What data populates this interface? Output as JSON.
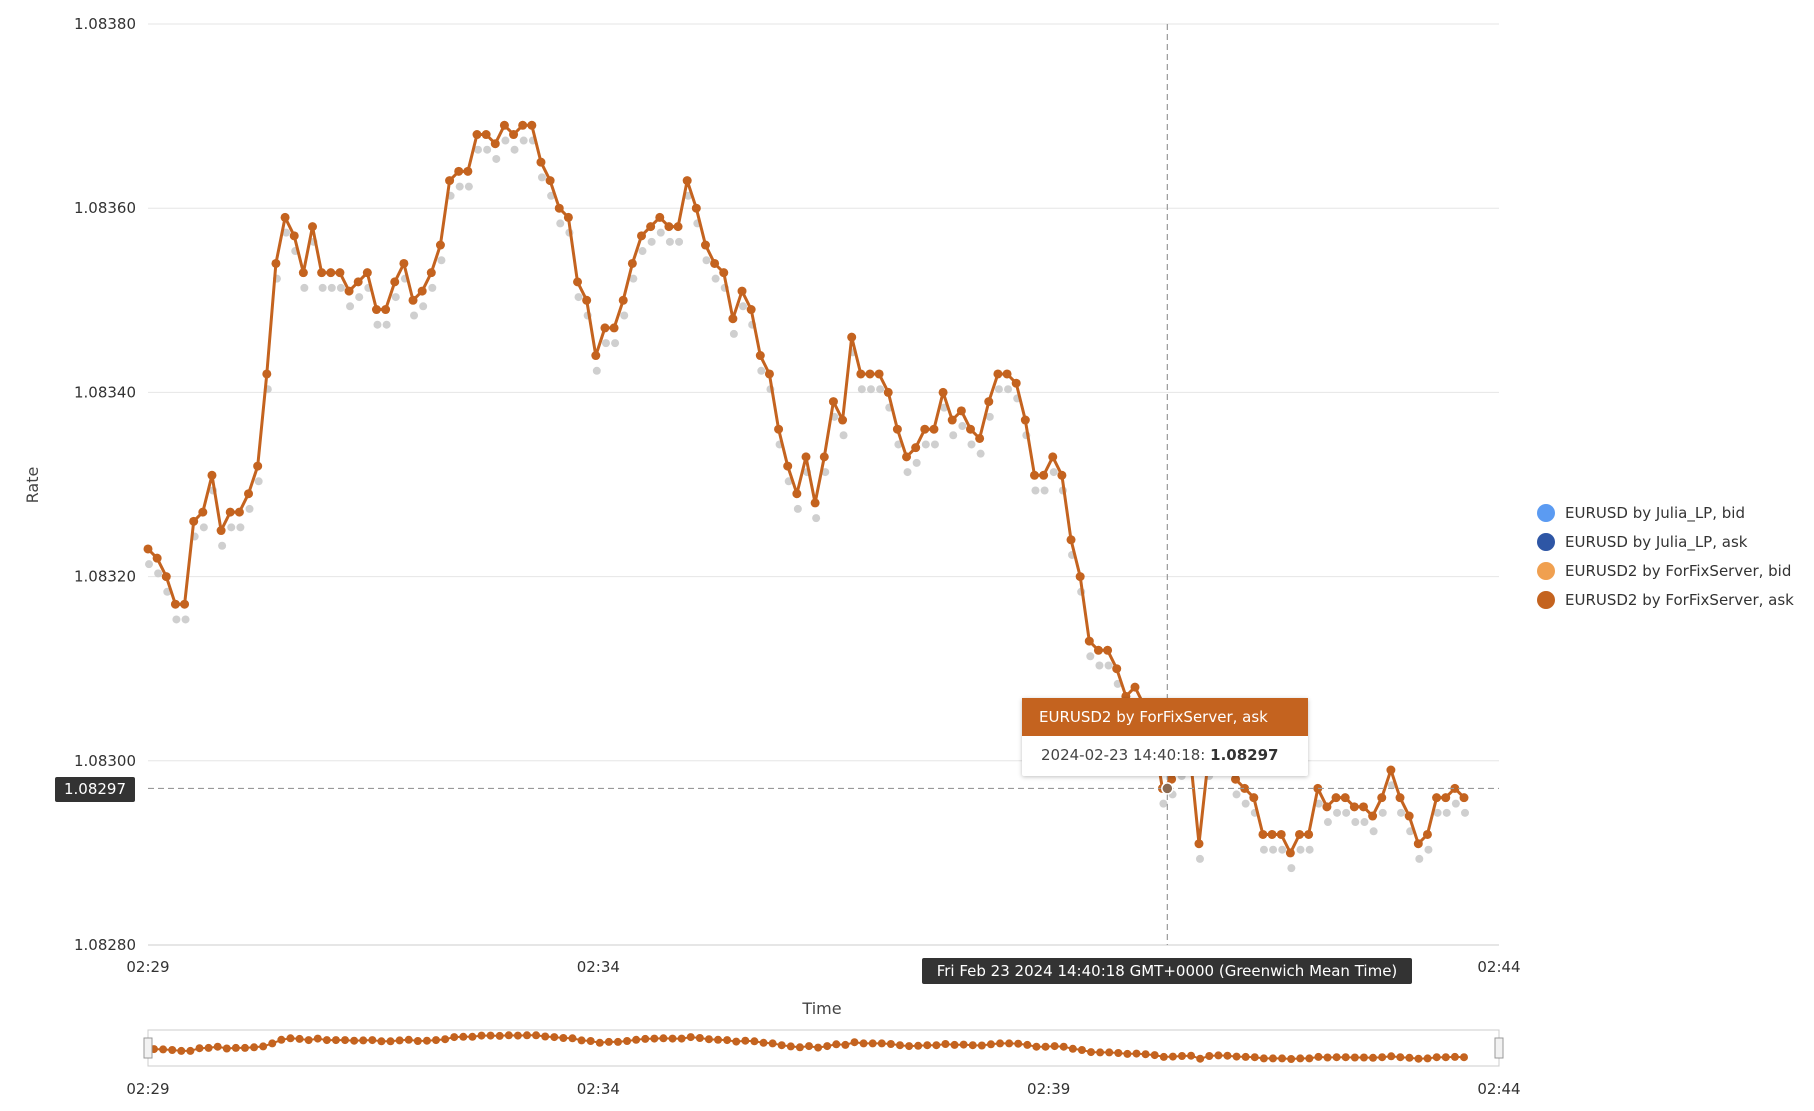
{
  "chart_data": {
    "type": "line",
    "title": "",
    "xlabel": "Time",
    "ylabel": "Rate",
    "ylim": [
      1.0828,
      1.0838
    ],
    "yticks": [
      "1.08280",
      "1.08300",
      "1.08320",
      "1.08340",
      "1.08360",
      "1.08380"
    ],
    "xticks": [
      "02:29",
      "02:34",
      "02:44"
    ],
    "navigator_xticks": [
      "02:29",
      "02:34",
      "02:39",
      "02:44"
    ],
    "x_start": "02:29:00",
    "x_end": "02:44:00",
    "legend_position": "right",
    "series": [
      {
        "name": "EURUSD by Julia_LP, bid",
        "color": "#5b9bf2",
        "values": []
      },
      {
        "name": "EURUSD by Julia_LP, ask",
        "color": "#2e56a5",
        "values": []
      },
      {
        "name": "EURUSD2 by ForFixServer, bid",
        "color": "#f0a050",
        "values": []
      },
      {
        "name": "EURUSD2 by ForFixServer, ask",
        "color": "#c4631f",
        "values": [
          1.08323,
          1.08322,
          1.0832,
          1.08317,
          1.08317,
          1.08326,
          1.08327,
          1.08331,
          1.08325,
          1.08327,
          1.08327,
          1.08329,
          1.08332,
          1.08342,
          1.08354,
          1.08359,
          1.08357,
          1.08353,
          1.08358,
          1.08353,
          1.08353,
          1.08353,
          1.08351,
          1.08352,
          1.08353,
          1.08349,
          1.08349,
          1.08352,
          1.08354,
          1.0835,
          1.08351,
          1.08353,
          1.08356,
          1.08363,
          1.08364,
          1.08364,
          1.08368,
          1.08368,
          1.08367,
          1.08369,
          1.08368,
          1.08369,
          1.08369,
          1.08365,
          1.08363,
          1.0836,
          1.08359,
          1.08352,
          1.0835,
          1.08344,
          1.08347,
          1.08347,
          1.0835,
          1.08354,
          1.08357,
          1.08358,
          1.08359,
          1.08358,
          1.08358,
          1.08363,
          1.0836,
          1.08356,
          1.08354,
          1.08353,
          1.08348,
          1.08351,
          1.08349,
          1.08344,
          1.08342,
          1.08336,
          1.08332,
          1.08329,
          1.08333,
          1.08328,
          1.08333,
          1.08339,
          1.08337,
          1.08346,
          1.08342,
          1.08342,
          1.08342,
          1.0834,
          1.08336,
          1.08333,
          1.08334,
          1.08336,
          1.08336,
          1.0834,
          1.08337,
          1.08338,
          1.08336,
          1.08335,
          1.08339,
          1.08342,
          1.08342,
          1.08341,
          1.08337,
          1.08331,
          1.08331,
          1.08333,
          1.08331,
          1.08324,
          1.0832,
          1.08313,
          1.08312,
          1.08312,
          1.0831,
          1.08307,
          1.08308,
          1.08306,
          1.08303,
          1.08297,
          1.08298,
          1.083,
          1.08301,
          1.08291,
          1.083,
          1.08302,
          1.08301,
          1.08298,
          1.08297,
          1.08296,
          1.08292,
          1.08292,
          1.08292,
          1.0829,
          1.08292,
          1.08292,
          1.08297,
          1.08295,
          1.08296,
          1.08296,
          1.08295,
          1.08295,
          1.08294,
          1.08296,
          1.08299,
          1.08296,
          1.08294,
          1.08291,
          1.08292,
          1.08296,
          1.08296,
          1.08297,
          1.08296
        ]
      },
      {
        "name": "",
        "color": "#cfcfcf",
        "values": [
          1.08322,
          1.08321,
          1.08319,
          1.08316,
          1.08316,
          1.08325,
          1.08326,
          1.0833,
          1.08324,
          1.08326,
          1.08326,
          1.08328,
          1.08331,
          1.08341,
          1.08353,
          1.08358,
          1.08356,
          1.08352,
          1.08357,
          1.08352,
          1.08352,
          1.08352,
          1.0835,
          1.08351,
          1.08352,
          1.08348,
          1.08348,
          1.08351,
          1.08353,
          1.08349,
          1.0835,
          1.08352,
          1.08355,
          1.08362,
          1.08363,
          1.08363,
          1.08367,
          1.08367,
          1.08366,
          1.08368,
          1.08367,
          1.08368,
          1.08368,
          1.08364,
          1.08362,
          1.08359,
          1.08358,
          1.08351,
          1.08349,
          1.08343,
          1.08346,
          1.08346,
          1.08349,
          1.08353,
          1.08356,
          1.08357,
          1.08358,
          1.08357,
          1.08357,
          1.08362,
          1.08359,
          1.08355,
          1.08353,
          1.08352,
          1.08347,
          1.0835,
          1.08348,
          1.08343,
          1.08341,
          1.08335,
          1.08331,
          1.08328,
          1.08332,
          1.08327,
          1.08332,
          1.08338,
          1.08336,
          1.08345,
          1.08341,
          1.08341,
          1.08341,
          1.08339,
          1.08335,
          1.08332,
          1.08333,
          1.08335,
          1.08335,
          1.08339,
          1.08336,
          1.08337,
          1.08335,
          1.08334,
          1.08338,
          1.08341,
          1.08341,
          1.0834,
          1.08336,
          1.0833,
          1.0833,
          1.08332,
          1.0833,
          1.08323,
          1.08319,
          1.08312,
          1.08311,
          1.08311,
          1.08309,
          1.08306,
          1.08307,
          1.08305,
          1.08302,
          1.08296,
          1.08297,
          1.08299,
          1.083,
          1.0829,
          1.08299,
          1.08301,
          1.083,
          1.08297,
          1.08296,
          1.08295,
          1.08291,
          1.08291,
          1.08291,
          1.08289,
          1.08291,
          1.08291,
          1.08296,
          1.08294,
          1.08295,
          1.08295,
          1.08294,
          1.08294,
          1.08293,
          1.08295,
          1.08298,
          1.08295,
          1.08293,
          1.0829,
          1.08291,
          1.08295,
          1.08295,
          1.08296,
          1.08295
        ]
      }
    ],
    "crosshair": {
      "value": "1.08297",
      "time_label": "Fri Feb 23 2024 14:40:18 GMT+0000 (Greenwich Mean Time)",
      "x_fraction": 0.7545
    }
  },
  "tooltip": {
    "series_name": "EURUSD2 by ForFixServer, ask",
    "datetime": "2024-02-23 14:40:18:",
    "value": "1.08297"
  }
}
